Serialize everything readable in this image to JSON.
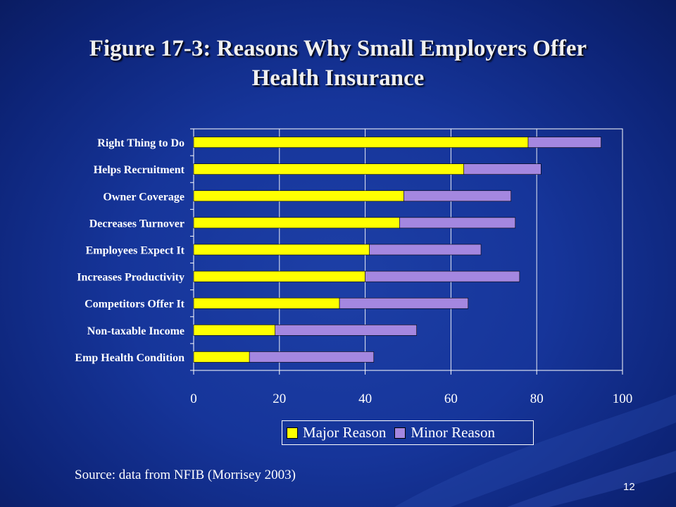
{
  "slide": {
    "title_line1": "Figure 17-3:  Reasons Why Small Employers Offer",
    "title_line2": "Health Insurance",
    "source": "Source:  data from NFIB (Morrisey 2003)",
    "page_number": "12"
  },
  "colors": {
    "major": "#ffff00",
    "minor": "#a487e0",
    "axis": "#ffffff",
    "text": "#ffffff"
  },
  "chart_data": {
    "type": "bar",
    "orientation": "horizontal",
    "stacked": true,
    "categories": [
      "Right Thing to Do",
      "Helps Recruitment",
      "Owner Coverage",
      "Decreases Turnover",
      "Employees Expect It",
      "Increases Productivity",
      "Competitors Offer It",
      "Non-taxable Income",
      "Emp Health Condition"
    ],
    "series": [
      {
        "name": "Major Reason",
        "values": [
          78,
          63,
          49,
          48,
          41,
          40,
          34,
          19,
          13
        ]
      },
      {
        "name": "Minor Reason",
        "values": [
          17,
          18,
          25,
          27,
          26,
          36,
          30,
          33,
          29
        ]
      }
    ],
    "xlim": [
      0,
      100
    ],
    "xticks": [
      "0",
      "20",
      "40",
      "60",
      "80",
      "100"
    ],
    "grid": true,
    "legend": "bottom-right"
  }
}
